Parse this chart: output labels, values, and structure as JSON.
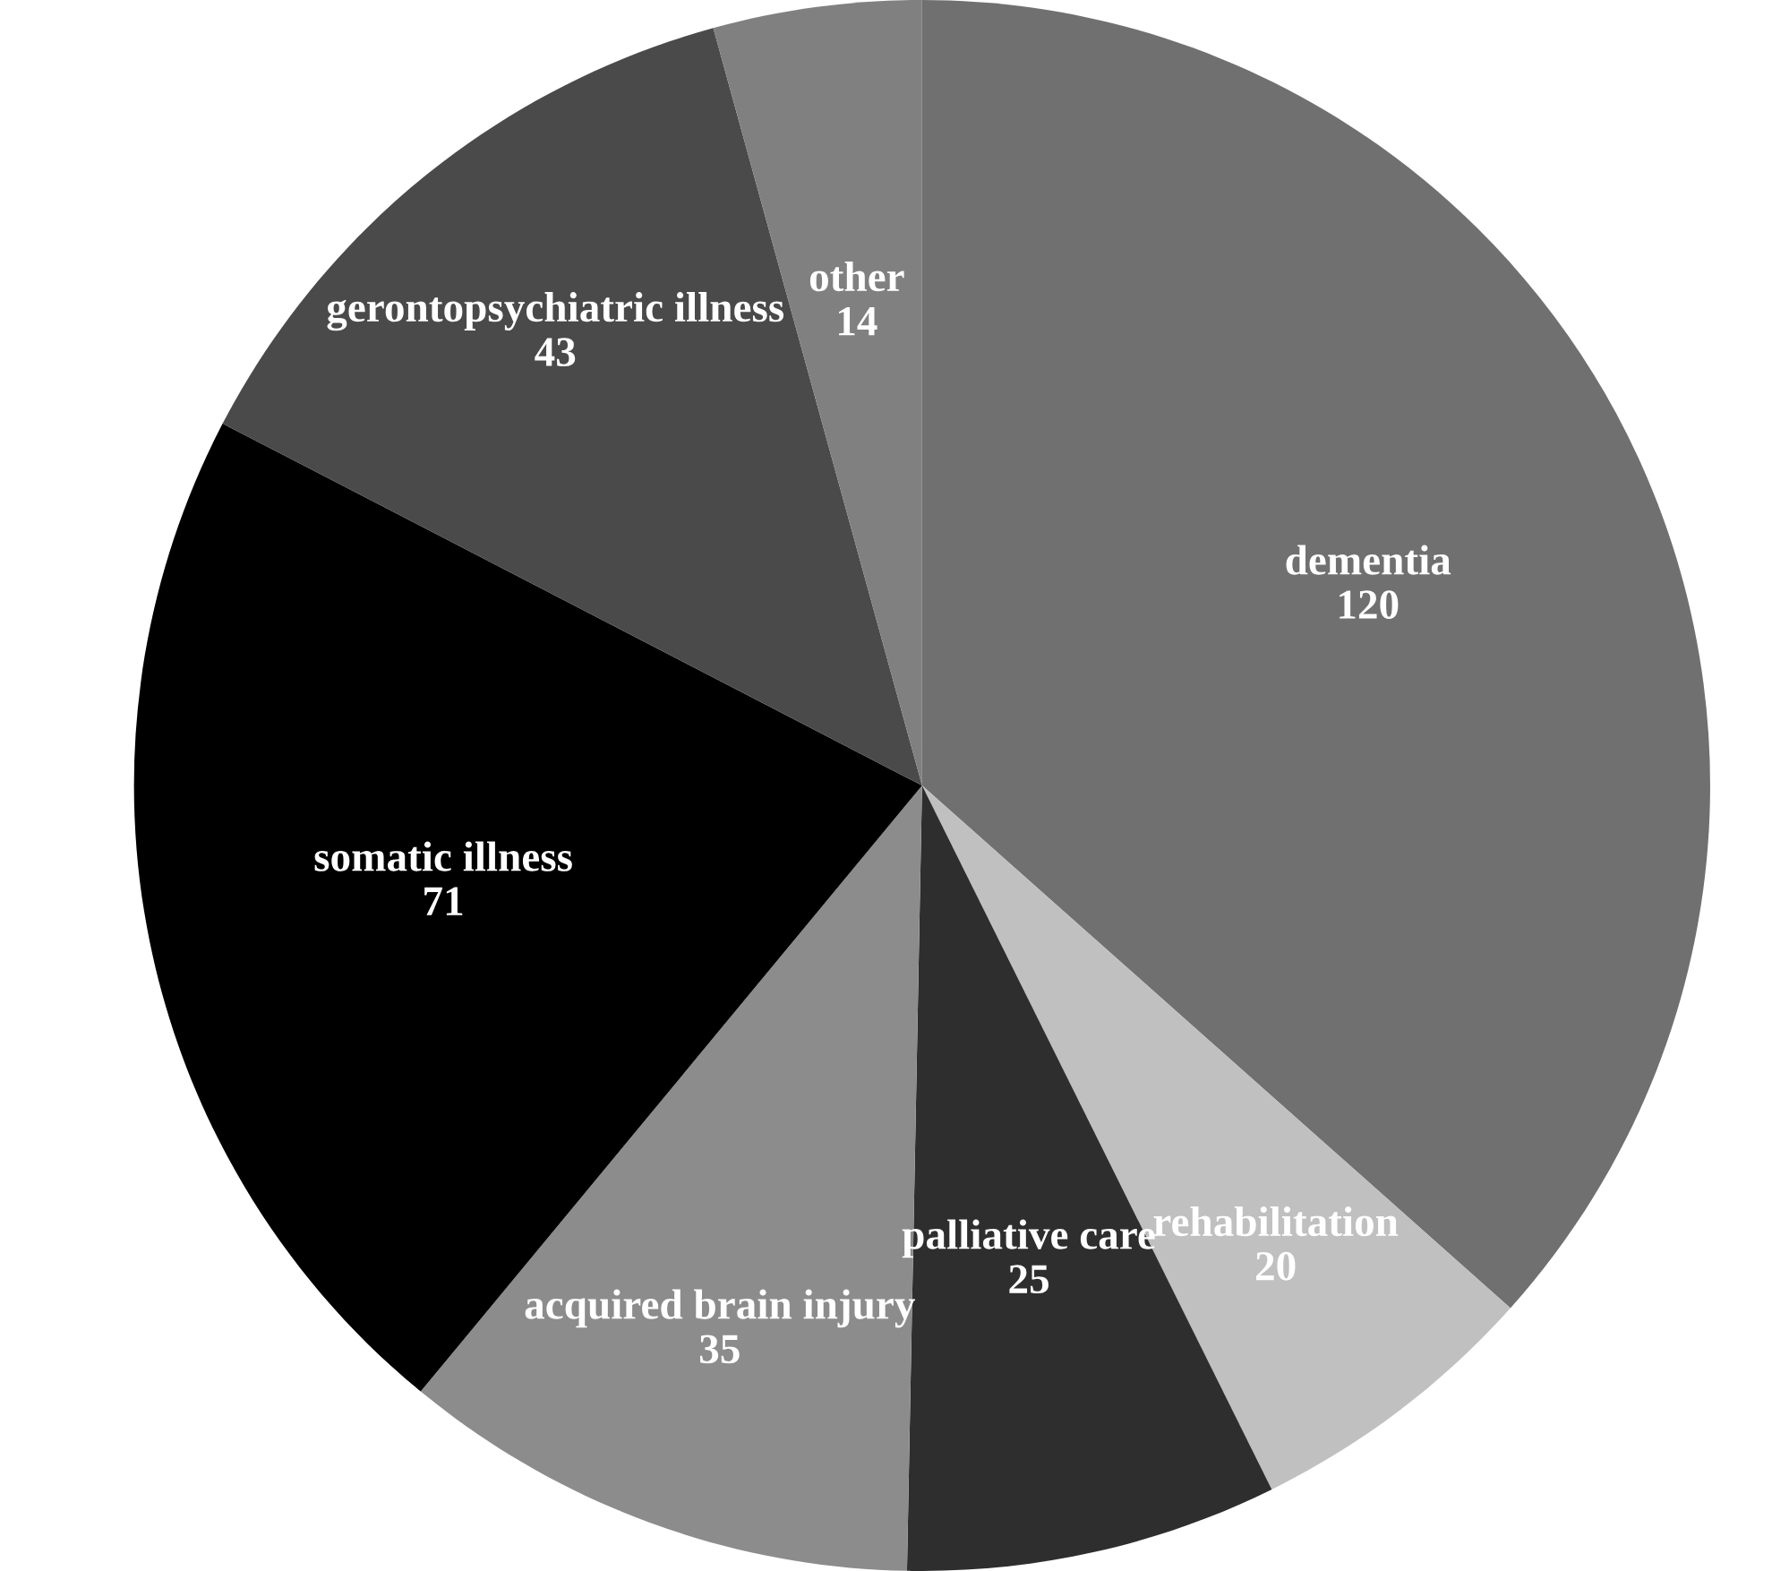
{
  "chart_data": {
    "type": "pie",
    "categories": [
      "dementia",
      "rehabilitation",
      "palliative care",
      "acquired brain injury",
      "somatic illness",
      "gerontopsychiatric illness",
      "other"
    ],
    "values": [
      120,
      20,
      25,
      35,
      71,
      43,
      14
    ],
    "colors": [
      "#707070",
      "#c0c0c0",
      "#2e2e2e",
      "#8c8c8c",
      "#000000",
      "#4a4a4a",
      "#808080"
    ],
    "data_labels": true,
    "legend": false
  }
}
